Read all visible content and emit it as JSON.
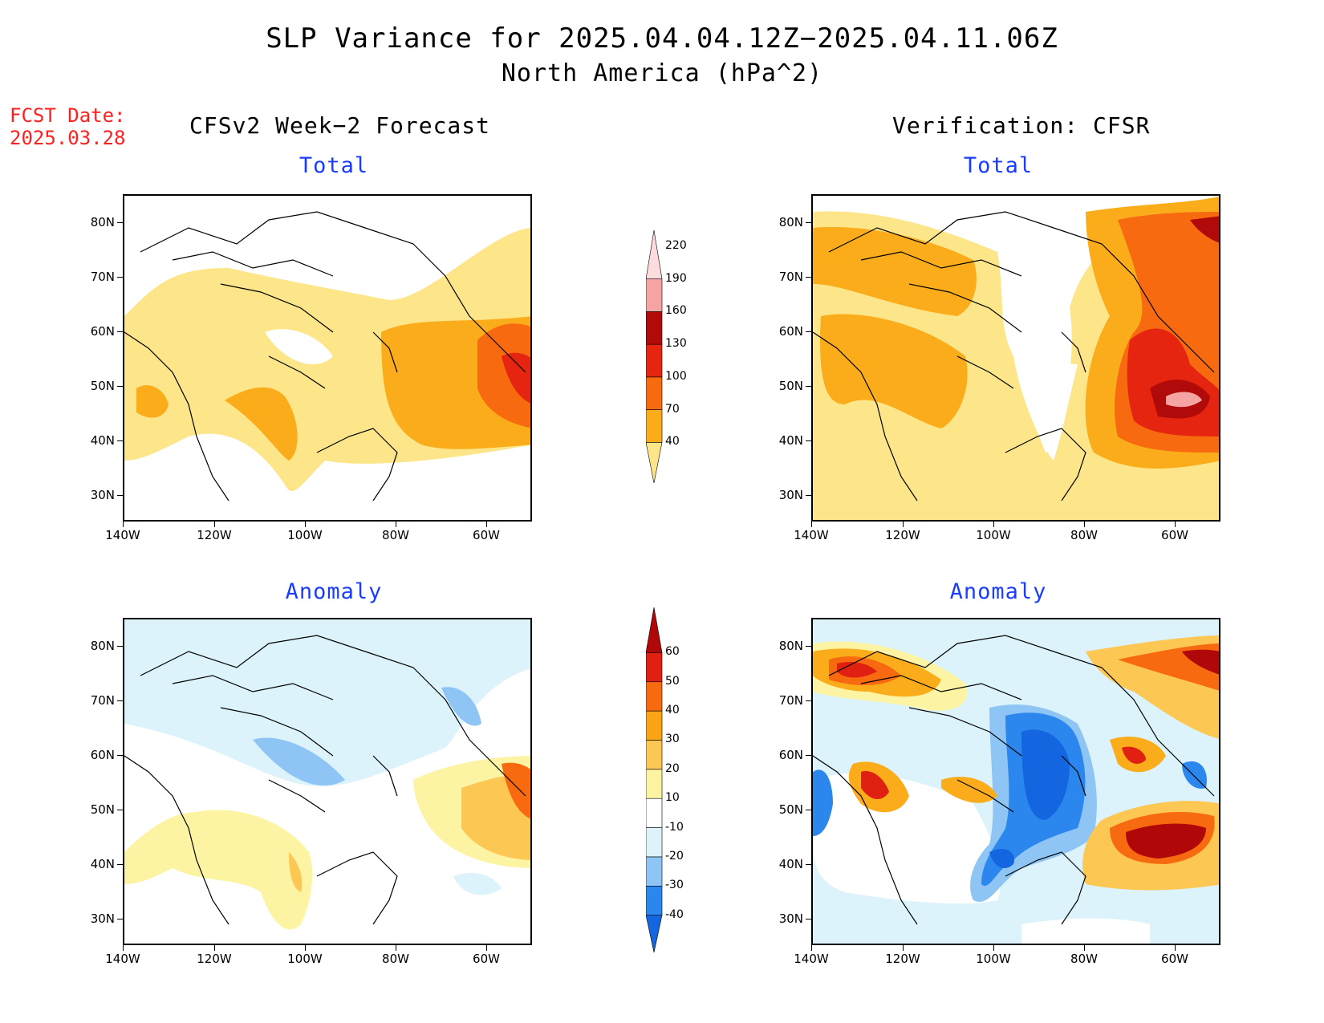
{
  "title": "SLP Variance for 2025.04.04.12Z−2025.04.11.06Z",
  "subtitle": "North America (hPa^2)",
  "fcst_label": "FCST Date:",
  "fcst_date": "2025.03.28",
  "columns": {
    "left": "CFSv2 Week−2 Forecast",
    "right": "Verification: CFSR"
  },
  "panels": {
    "total_label": "Total",
    "anomaly_label": "Anomaly"
  },
  "axes": {
    "lat_labels": [
      "80N",
      "70N",
      "60N",
      "50N",
      "40N",
      "30N"
    ],
    "lon_labels": [
      "140W",
      "120W",
      "100W",
      "80W",
      "60W"
    ]
  },
  "colorbars": {
    "total": {
      "levels": [
        "40",
        "70",
        "100",
        "130",
        "160",
        "190",
        "220"
      ],
      "colors": [
        "#fde68a",
        "#fbac1a",
        "#f76a0f",
        "#e5250f",
        "#b00a0a",
        "#f5a3a3",
        "#fcdcdc"
      ]
    },
    "anomaly": {
      "levels": [
        "-40",
        "-30",
        "-20",
        "-10",
        "10",
        "20",
        "30",
        "40",
        "50",
        "60"
      ],
      "colors": [
        "#1466e0",
        "#2b86ee",
        "#8ec5f4",
        "#dcf3fb",
        "#ffffff",
        "#fdf4a3",
        "#fdc753",
        "#fba516",
        "#f86a10",
        "#e02010",
        "#b00808"
      ]
    }
  },
  "chart_data": {
    "type": "heatmap",
    "lon_range": [
      "140W",
      "50W"
    ],
    "lat_range": [
      "25N",
      "85N"
    ]
  }
}
